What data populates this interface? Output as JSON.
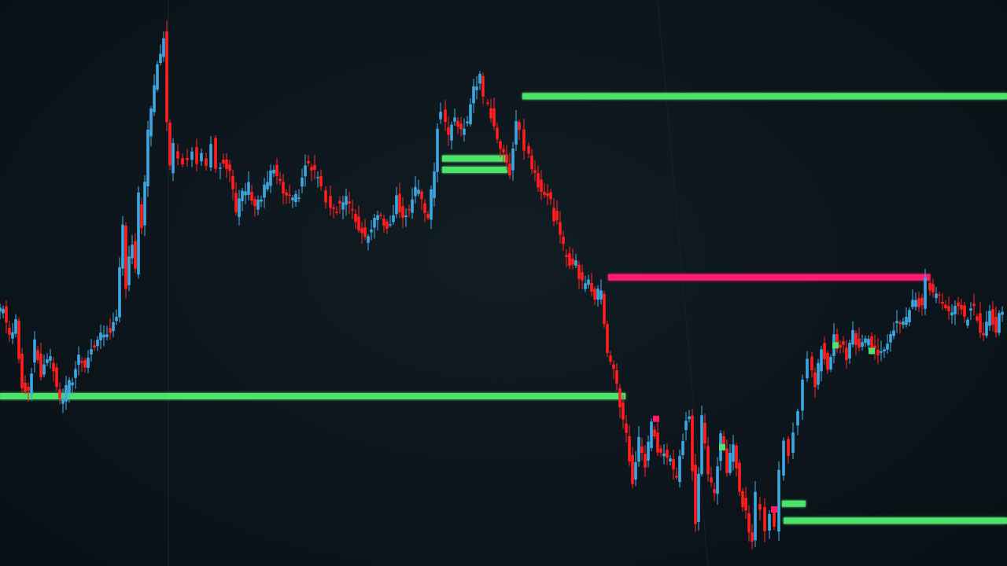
{
  "theme": {
    "background": "#0d161c",
    "up_color": "#3ea7e0",
    "down_color": "#ff1f1f",
    "support_color": "#4ee36a",
    "resistance_color": "#ff1a6e",
    "marker_green": "#4ee36a",
    "marker_pink": "#ff1a6e"
  },
  "chart_data": {
    "type": "candlestick",
    "title": "",
    "xlabel": "",
    "ylabel": "",
    "grid": false,
    "legend": "none",
    "x_range": [
      0,
      1280
    ],
    "y_range": [
      0,
      100
    ],
    "closes": [
      [
        0,
        45
      ],
      [
        8,
        46
      ],
      [
        16,
        40
      ],
      [
        24,
        43
      ],
      [
        32,
        32
      ],
      [
        40,
        31
      ],
      [
        48,
        39
      ],
      [
        56,
        34
      ],
      [
        64,
        37
      ],
      [
        72,
        35
      ],
      [
        80,
        29
      ],
      [
        88,
        31
      ],
      [
        96,
        33
      ],
      [
        104,
        37
      ],
      [
        112,
        36
      ],
      [
        120,
        38
      ],
      [
        128,
        40
      ],
      [
        136,
        41
      ],
      [
        144,
        42
      ],
      [
        152,
        43
      ],
      [
        156,
        52
      ],
      [
        160,
        60
      ],
      [
        164,
        50
      ],
      [
        168,
        55
      ],
      [
        172,
        57
      ],
      [
        176,
        52
      ],
      [
        180,
        65
      ],
      [
        184,
        60
      ],
      [
        188,
        68
      ],
      [
        192,
        76
      ],
      [
        196,
        80
      ],
      [
        200,
        85
      ],
      [
        204,
        88
      ],
      [
        208,
        91
      ],
      [
        212,
        94
      ],
      [
        216,
        78
      ],
      [
        220,
        70
      ],
      [
        226,
        74
      ],
      [
        232,
        73
      ],
      [
        238,
        72
      ],
      [
        244,
        71
      ],
      [
        250,
        74
      ],
      [
        256,
        72
      ],
      [
        262,
        73
      ],
      [
        268,
        71
      ],
      [
        274,
        75
      ],
      [
        280,
        71
      ],
      [
        288,
        72
      ],
      [
        296,
        70
      ],
      [
        304,
        62
      ],
      [
        312,
        66
      ],
      [
        320,
        67
      ],
      [
        328,
        64
      ],
      [
        336,
        65
      ],
      [
        344,
        68
      ],
      [
        352,
        70
      ],
      [
        360,
        67
      ],
      [
        368,
        65
      ],
      [
        376,
        64
      ],
      [
        384,
        66
      ],
      [
        392,
        71
      ],
      [
        400,
        70
      ],
      [
        408,
        69
      ],
      [
        414,
        66
      ],
      [
        420,
        65
      ],
      [
        428,
        63
      ],
      [
        436,
        64
      ],
      [
        444,
        65
      ],
      [
        452,
        62
      ],
      [
        460,
        60
      ],
      [
        468,
        58
      ],
      [
        476,
        60
      ],
      [
        484,
        63
      ],
      [
        492,
        60
      ],
      [
        500,
        61
      ],
      [
        508,
        65
      ],
      [
        516,
        62
      ],
      [
        524,
        63
      ],
      [
        532,
        66
      ],
      [
        540,
        65
      ],
      [
        548,
        61
      ],
      [
        556,
        70
      ],
      [
        560,
        78
      ],
      [
        566,
        80
      ],
      [
        574,
        76
      ],
      [
        582,
        79
      ],
      [
        590,
        77
      ],
      [
        598,
        78
      ],
      [
        606,
        85
      ],
      [
        614,
        86
      ],
      [
        620,
        82
      ],
      [
        628,
        80
      ],
      [
        636,
        76
      ],
      [
        644,
        72
      ],
      [
        652,
        70
      ],
      [
        660,
        79
      ],
      [
        666,
        77
      ],
      [
        672,
        74
      ],
      [
        680,
        71
      ],
      [
        688,
        68
      ],
      [
        696,
        66
      ],
      [
        704,
        64
      ],
      [
        712,
        60
      ],
      [
        720,
        56
      ],
      [
        728,
        54
      ],
      [
        736,
        53
      ],
      [
        744,
        50
      ],
      [
        752,
        51
      ],
      [
        760,
        47
      ],
      [
        768,
        49
      ],
      [
        776,
        38
      ],
      [
        784,
        35
      ],
      [
        792,
        28
      ],
      [
        800,
        23
      ],
      [
        808,
        15
      ],
      [
        816,
        22
      ],
      [
        824,
        18
      ],
      [
        832,
        25
      ],
      [
        840,
        21
      ],
      [
        848,
        20
      ],
      [
        856,
        19
      ],
      [
        864,
        15
      ],
      [
        872,
        23
      ],
      [
        880,
        27
      ],
      [
        888,
        7
      ],
      [
        896,
        26
      ],
      [
        904,
        16
      ],
      [
        912,
        13
      ],
      [
        920,
        24
      ],
      [
        928,
        17
      ],
      [
        936,
        21
      ],
      [
        944,
        14
      ],
      [
        952,
        9
      ],
      [
        960,
        5
      ],
      [
        966,
        12
      ],
      [
        972,
        11
      ],
      [
        978,
        6
      ],
      [
        984,
        10
      ],
      [
        990,
        7
      ],
      [
        996,
        17
      ],
      [
        1002,
        22
      ],
      [
        1008,
        19
      ],
      [
        1014,
        24
      ],
      [
        1020,
        27
      ],
      [
        1026,
        34
      ],
      [
        1032,
        37
      ],
      [
        1040,
        31
      ],
      [
        1048,
        39
      ],
      [
        1056,
        35
      ],
      [
        1064,
        40
      ],
      [
        1072,
        39
      ],
      [
        1080,
        37
      ],
      [
        1088,
        41
      ],
      [
        1096,
        38
      ],
      [
        1104,
        40
      ],
      [
        1112,
        39
      ],
      [
        1120,
        38
      ],
      [
        1128,
        39
      ],
      [
        1136,
        41
      ],
      [
        1144,
        44
      ],
      [
        1152,
        43
      ],
      [
        1160,
        45
      ],
      [
        1168,
        47
      ],
      [
        1176,
        46
      ],
      [
        1182,
        51
      ],
      [
        1190,
        48
      ],
      [
        1198,
        47
      ],
      [
        1206,
        45
      ],
      [
        1214,
        44
      ],
      [
        1222,
        47
      ],
      [
        1230,
        43
      ],
      [
        1238,
        46
      ],
      [
        1246,
        44
      ],
      [
        1254,
        40
      ],
      [
        1262,
        45
      ],
      [
        1270,
        42
      ],
      [
        1278,
        46
      ]
    ],
    "levels": [
      {
        "kind": "support",
        "value": 30,
        "x_start": 0,
        "x_end": 795
      },
      {
        "kind": "support",
        "value": 83,
        "x_start": 664,
        "x_end": 1280
      },
      {
        "kind": "support",
        "value": 72,
        "x_start": 562,
        "x_end": 645
      },
      {
        "kind": "support",
        "value": 70,
        "x_start": 562,
        "x_end": 645
      },
      {
        "kind": "resistance",
        "value": 51,
        "x_start": 773,
        "x_end": 1182
      },
      {
        "kind": "support",
        "value": 11,
        "x_start": 994,
        "x_end": 1024
      },
      {
        "kind": "support",
        "value": 8,
        "x_start": 996,
        "x_end": 1280
      }
    ],
    "markers": [
      {
        "x": 834,
        "value": 26,
        "kind": "pink"
      },
      {
        "x": 918,
        "value": 21,
        "kind": "green"
      },
      {
        "x": 984,
        "value": 10,
        "kind": "pink"
      },
      {
        "x": 1062,
        "value": 39,
        "kind": "green"
      },
      {
        "x": 1108,
        "value": 38,
        "kind": "green"
      }
    ]
  }
}
